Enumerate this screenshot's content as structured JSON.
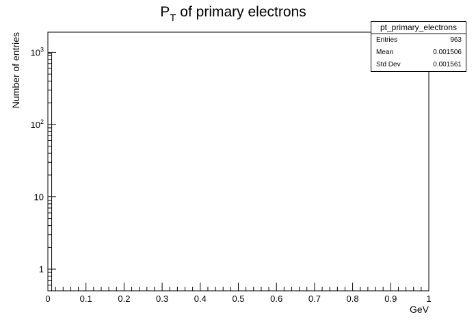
{
  "chart_data": {
    "type": "bar",
    "title_main": "P",
    "title_sub": "T",
    "title_rest": " of primary electrons",
    "xlabel": "GeV",
    "ylabel": "Number of entries",
    "xlim": [
      0,
      1
    ],
    "ylim": [
      0.5,
      1900
    ],
    "log_y": true,
    "x_tick_labels": [
      "0",
      "0.1",
      "0.2",
      "0.3",
      "0.4",
      "0.5",
      "0.6",
      "0.7",
      "0.8",
      "0.9",
      "1"
    ],
    "y_ticks": [
      {
        "value": 1,
        "base": "1",
        "exp": ""
      },
      {
        "value": 10,
        "base": "10",
        "exp": ""
      },
      {
        "value": 100,
        "base": "10",
        "exp": "2"
      },
      {
        "value": 1000,
        "base": "10",
        "exp": "3"
      }
    ],
    "bins": [
      {
        "x_low": 0,
        "x_high": 0.01,
        "count": 963
      }
    ],
    "grid": false,
    "line_color": "#000000"
  },
  "stats": {
    "title": "pt_primary_electrons",
    "rows": [
      {
        "key": "Entries",
        "value": "963"
      },
      {
        "key": "Mean",
        "value": "0.001506"
      },
      {
        "key": "Std Dev",
        "value": "0.001561"
      }
    ]
  }
}
